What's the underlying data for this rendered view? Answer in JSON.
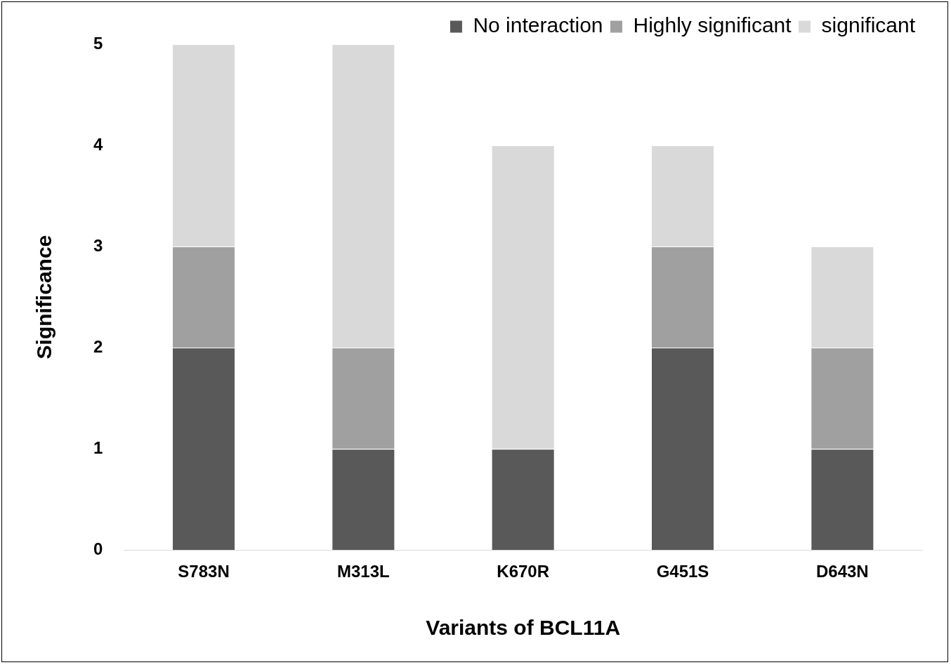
{
  "chart_data": {
    "type": "bar",
    "stacked": true,
    "xlabel": "Variants of BCL11A",
    "ylabel": "Significance",
    "categories": [
      "S783N",
      "M313L",
      "K670R",
      "G451S",
      "D643N"
    ],
    "series": [
      {
        "name": "No interaction",
        "color": "#595959",
        "values": [
          2,
          1,
          1,
          2,
          1
        ]
      },
      {
        "name": "Highly significant",
        "color": "#a0a0a0",
        "values": [
          1,
          1,
          0,
          1,
          1
        ]
      },
      {
        "name": "significant",
        "color": "#d9d9d9",
        "values": [
          2,
          3,
          3,
          1,
          1
        ]
      }
    ],
    "ylim": [
      0,
      5
    ],
    "yticks": [
      0,
      1,
      2,
      3,
      4,
      5
    ],
    "grid": false,
    "legend": "top right"
  }
}
